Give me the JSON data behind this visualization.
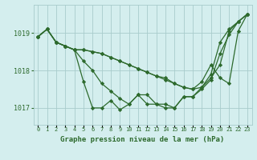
{
  "x": [
    0,
    1,
    2,
    3,
    4,
    5,
    6,
    7,
    8,
    9,
    10,
    11,
    12,
    13,
    14,
    15,
    16,
    17,
    18,
    19,
    20,
    21,
    22,
    23
  ],
  "series": [
    [
      1018.9,
      1019.1,
      1018.75,
      1018.65,
      1018.55,
      1017.7,
      1017.0,
      1017.0,
      1017.2,
      1016.95,
      1017.1,
      1017.35,
      1017.1,
      1017.1,
      1017.0,
      1017.0,
      1017.3,
      1017.3,
      1017.55,
      1017.8,
      1018.15,
      1019.05,
      1019.3,
      1019.5
    ],
    [
      1018.9,
      1019.1,
      1018.75,
      1018.65,
      1018.55,
      1018.55,
      1018.5,
      1018.45,
      1018.35,
      1018.25,
      1018.15,
      1018.05,
      1017.95,
      1017.85,
      1017.75,
      1017.65,
      1017.55,
      1017.5,
      1017.55,
      1017.9,
      1018.75,
      1019.1,
      1019.3,
      1019.5
    ],
    [
      1018.9,
      1019.1,
      1018.75,
      1018.65,
      1018.55,
      1018.25,
      1018.0,
      1017.65,
      1017.45,
      1017.25,
      1017.1,
      1017.35,
      1017.35,
      1017.1,
      1017.1,
      1017.0,
      1017.3,
      1017.3,
      1017.5,
      1017.75,
      1018.45,
      1018.95,
      1019.3,
      1019.5
    ],
    [
      1018.9,
      1019.1,
      1018.75,
      1018.65,
      1018.55,
      1018.55,
      1018.5,
      1018.45,
      1018.35,
      1018.25,
      1018.15,
      1018.05,
      1017.95,
      1017.85,
      1017.8,
      1017.65,
      1017.55,
      1017.5,
      1017.7,
      1018.15,
      1017.8,
      1017.65,
      1019.05,
      1019.5
    ]
  ],
  "line_color": "#2d6a2d",
  "marker": "D",
  "markersize": 2.2,
  "linewidth": 0.9,
  "bg_color": "#d4eeee",
  "grid_color": "#a8cccc",
  "label_color": "#2d6a2d",
  "xlabel": "Graphe pression niveau de la mer (hPa)",
  "ylim": [
    1016.55,
    1019.75
  ],
  "yticks": [
    1017,
    1018,
    1019
  ],
  "xtick_labels": [
    "0",
    "1",
    "2",
    "3",
    "4",
    "5",
    "6",
    "7",
    "8",
    "9",
    "10",
    "11",
    "12",
    "13",
    "14",
    "15",
    "16",
    "17",
    "18",
    "19",
    "20",
    "21",
    "22",
    "23"
  ],
  "xlabel_fontsize": 6.5,
  "ytick_fontsize": 6,
  "xtick_fontsize": 5
}
